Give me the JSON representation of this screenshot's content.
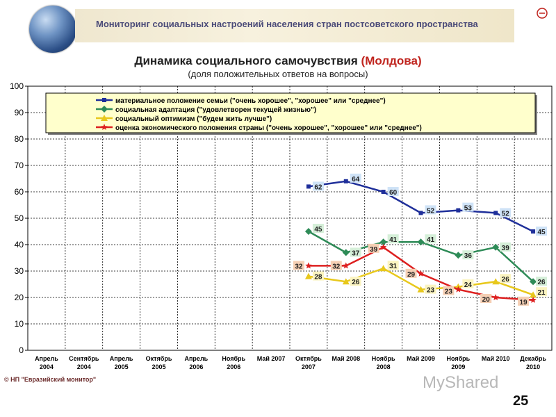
{
  "header": {
    "banner_title": "Мониторинг социальных настроений населения стран постсоветского пространства"
  },
  "chart_data": {
    "type": "line",
    "title_main": "Динамика социального самочувствия ",
    "title_highlight": "(Молдова)",
    "subtitle": "(доля положительных ответов на вопросы)",
    "ylim": [
      0,
      100
    ],
    "y_ticks": [
      0,
      10,
      20,
      30,
      40,
      50,
      60,
      70,
      80,
      90,
      100
    ],
    "grid": true,
    "legend_position": "top",
    "categories": [
      [
        "Апрель",
        "2004"
      ],
      [
        "Сентябрь",
        "2004"
      ],
      [
        "Апрель",
        "2005"
      ],
      [
        "Октябрь",
        "2005"
      ],
      [
        "Апрель",
        "2006"
      ],
      [
        "Ноябрь",
        "2006"
      ],
      [
        "Май 2007"
      ],
      [
        "Октябрь",
        "2007"
      ],
      [
        "Май 2008"
      ],
      [
        "Ноябрь",
        "2008"
      ],
      [
        "Май 2009"
      ],
      [
        "Ноябрь",
        "2009"
      ],
      [
        "Май 2010"
      ],
      [
        "Декабрь",
        "2010"
      ]
    ],
    "series": [
      {
        "name": "материальное положение семьи (\"очень хорошее\", \"хорошее\" или \"среднее\")",
        "color": "#1f2f9a",
        "marker": "square",
        "label_bg": "#cfe3f7",
        "values": [
          null,
          null,
          null,
          null,
          null,
          null,
          null,
          62,
          64,
          60,
          52,
          53,
          52,
          45
        ]
      },
      {
        "name": "социальная адаптация (\"удовлетворен текущей жизнью\")",
        "color": "#2e8b57",
        "marker": "diamond",
        "label_bg": "#d5efd8",
        "values": [
          null,
          null,
          null,
          null,
          null,
          null,
          null,
          45,
          37,
          41,
          41,
          36,
          39,
          26
        ]
      },
      {
        "name": "социальный оптимизм (\"будем жить лучше\")",
        "color": "#e8c81c",
        "marker": "triangle",
        "label_bg": "#fbf4c0",
        "values": [
          null,
          null,
          null,
          null,
          null,
          null,
          null,
          28,
          26,
          31,
          23,
          24,
          26,
          21
        ]
      },
      {
        "name": "оценка экономического положения страны (\"очень хорошее\", \"хорошее\" или \"среднее\")",
        "color": "#dd1f1f",
        "marker": "star",
        "label_bg": "#f5cfb4",
        "values": [
          null,
          null,
          null,
          null,
          null,
          null,
          null,
          32,
          32,
          39,
          29,
          23,
          20,
          19
        ]
      }
    ]
  },
  "footer": {
    "copyright": "© НП \"Евразийский монитор\"",
    "watermark": "MyShared",
    "page_number": "25"
  }
}
